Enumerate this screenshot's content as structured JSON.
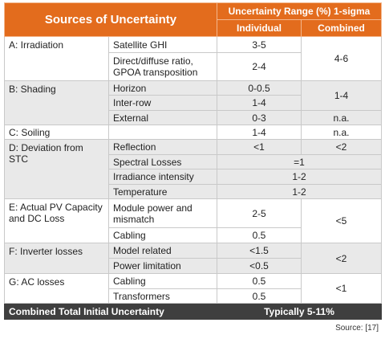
{
  "header": {
    "title": "Sources of Uncertainty",
    "range_title": "Uncertainty Range (%) 1-sigma",
    "individual": "Individual",
    "combined": "Combined"
  },
  "groups": [
    {
      "source": "A: Irradiation",
      "items": [
        {
          "name": "Satellite GHI",
          "individual": "3-5"
        },
        {
          "name": "Direct/diffuse ratio, GPOA transposition",
          "individual": "2-4"
        }
      ],
      "combined": [
        "4-6"
      ]
    },
    {
      "source": "B: Shading",
      "items": [
        {
          "name": "Horizon",
          "individual": "0-0.5"
        },
        {
          "name": "Inter-row",
          "individual": "1-4"
        },
        {
          "name": "External",
          "individual": "0-3"
        }
      ],
      "combined": [
        "1-4",
        "n.a."
      ]
    },
    {
      "source": "C: Soiling",
      "items": [
        {
          "individual": "1-4"
        }
      ],
      "combined": [
        "n.a."
      ]
    },
    {
      "source": "D: Deviation from STC",
      "items": [
        {
          "name": "Reflection",
          "individual": "<1"
        },
        {
          "name": "Spectral Losses",
          "range": "=1"
        },
        {
          "name": "Irradiance intensity",
          "range": "1-2"
        },
        {
          "name": "Temperature",
          "range": "1-2"
        }
      ],
      "combined": [
        "<2"
      ]
    },
    {
      "source": "E: Actual PV Capacity and DC Loss",
      "items": [
        {
          "name": "Module power and mismatch",
          "individual": "2-5"
        },
        {
          "name": "Cabling",
          "individual": "0.5"
        }
      ],
      "combined": [
        "<5"
      ]
    },
    {
      "source": "F: Inverter losses",
      "items": [
        {
          "name": "Model related",
          "individual": "<1.5"
        },
        {
          "name": "Power limitation",
          "individual": "<0.5"
        }
      ],
      "combined": [
        "<2"
      ]
    },
    {
      "source": "G: AC losses",
      "items": [
        {
          "name": "Cabling",
          "individual": "0.5"
        },
        {
          "name": "Transformers",
          "individual": "0.5"
        }
      ],
      "combined": [
        "<1"
      ]
    }
  ],
  "footer": {
    "label": "Combined Total Initial Uncertainty",
    "value": "Typically 5-11%"
  },
  "source": "Source: [17]"
}
